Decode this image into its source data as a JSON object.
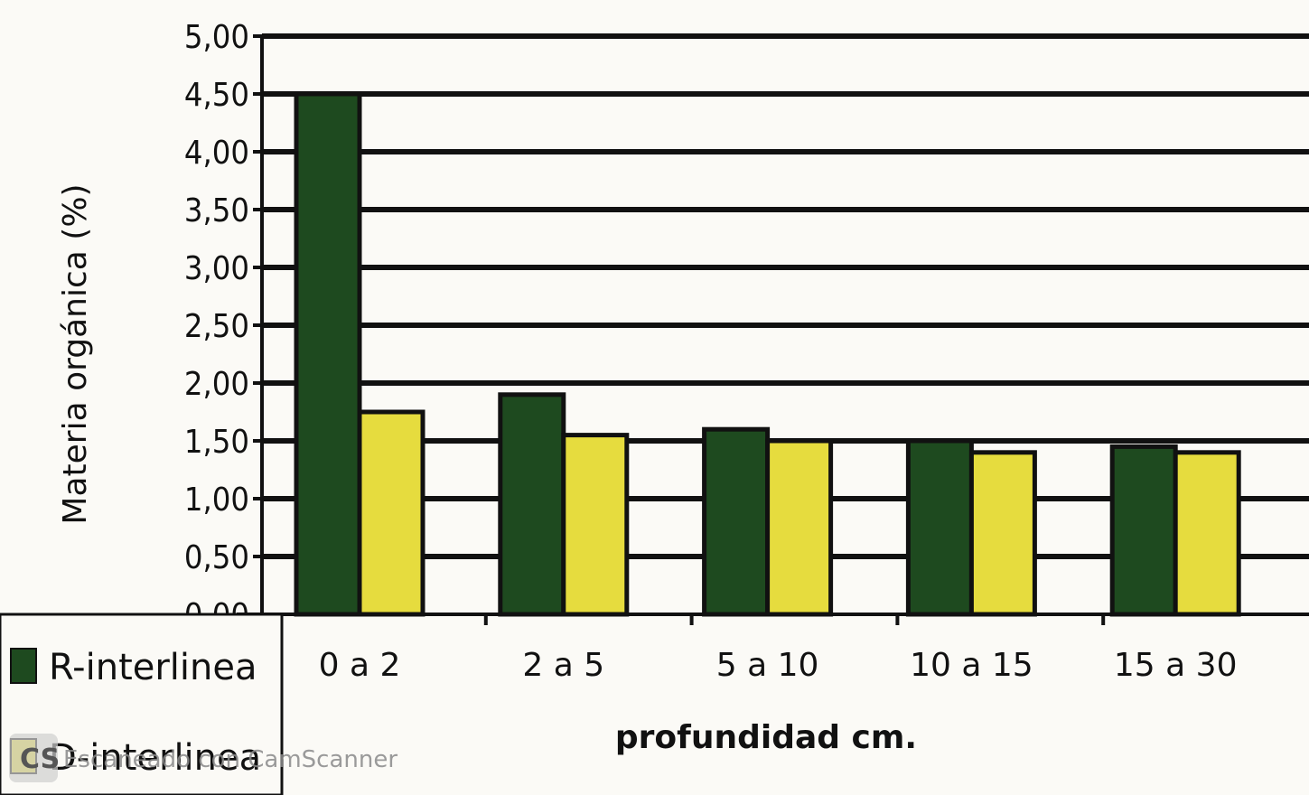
{
  "chart_data": {
    "type": "bar",
    "categories": [
      "0 a 2",
      "2 a 5",
      "5 a 10",
      "10 a 15",
      "15 a 30"
    ],
    "series": [
      {
        "name": "R-interlinea",
        "color": "#1e4a1f",
        "values": [
          4.5,
          1.9,
          1.6,
          1.5,
          1.45
        ]
      },
      {
        "name": "D-interlinea",
        "color": "#e6dc3e",
        "values": [
          1.75,
          1.55,
          1.5,
          1.4,
          1.4
        ]
      }
    ],
    "xlabel": "profundidad cm.",
    "ylabel": "Materia orgánica (%)",
    "ylim": [
      0,
      5
    ],
    "yticks": [
      "0,00",
      "0,50",
      "1,00",
      "1,50",
      "2,00",
      "2,50",
      "3,00",
      "3,50",
      "4,00",
      "4,50",
      "5,00"
    ],
    "grid": true,
    "legend_position": "bottom-left"
  },
  "watermark": {
    "text": "Escaneado con CamScanner",
    "icon": "camscanner-logo-icon"
  }
}
